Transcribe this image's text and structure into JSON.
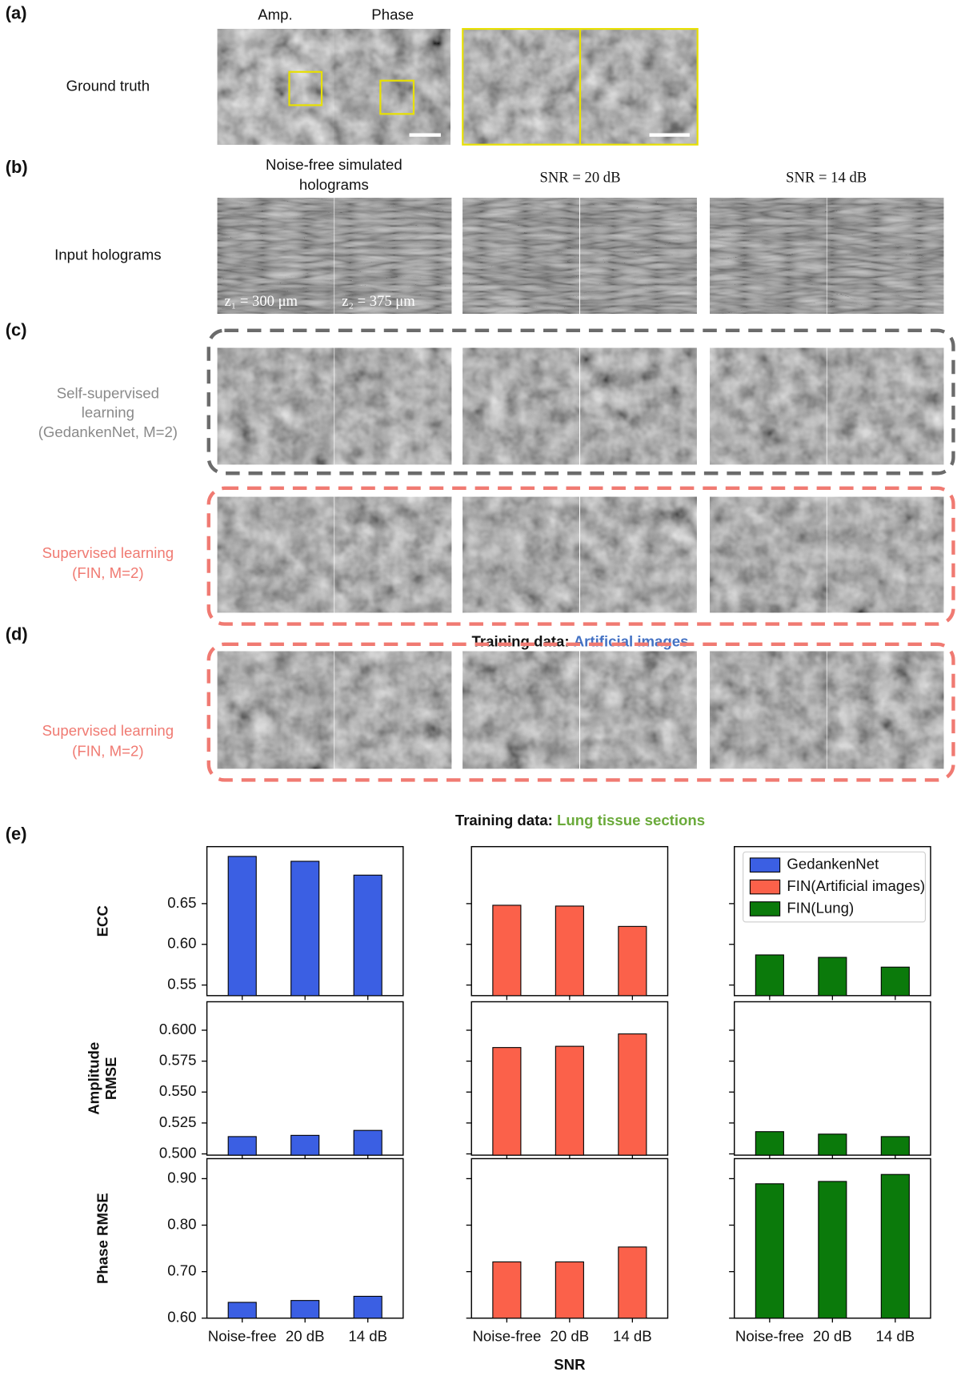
{
  "panel_a": {
    "label": "(a)",
    "row_label": "Ground truth",
    "columns": [
      "Amp.",
      "Phase"
    ]
  },
  "panel_b": {
    "label": "(b)",
    "row_label": "Input holograms",
    "columns": [
      [
        "Noise-free simulated",
        "holograms"
      ],
      [
        "SNR = 20 dB"
      ],
      [
        "SNR = 14 dB"
      ]
    ],
    "distances": [
      "z₁ = 300 μm",
      "z₂ = 375 μm"
    ]
  },
  "panel_c": {
    "label": "(c)",
    "rows": [
      [
        "Self-supervised",
        "learning",
        "(GedankenNet, M=2)"
      ],
      [
        "Supervised learning",
        "(FIN, M=2)"
      ]
    ],
    "training_data": {
      "prefix": "Training data:",
      "name": "Artificial images"
    }
  },
  "panel_d": {
    "label": "(d)",
    "row_label": [
      "Supervised learning",
      "(FIN, M=2)"
    ],
    "training_data": {
      "prefix": "Training data:",
      "name": "Lung tissue sections"
    }
  },
  "panel_e": {
    "label": "(e)"
  },
  "chart_data": [
    {
      "type": "bar",
      "ylabel": [
        "ECC"
      ],
      "ylim": [
        0.537,
        0.72
      ],
      "yticks": [
        0.55,
        {
          "value": 0.6,
          "label": "0.60"
        },
        0.65
      ],
      "series": [
        {
          "name": "GedankenNet",
          "color": "#3b5fe3",
          "values": [
            0.708,
            0.702,
            0.685
          ]
        }
      ]
    },
    {
      "type": "bar",
      "ylim": [
        0.537,
        0.72
      ],
      "series": [
        {
          "name": "FIN(Artificial images)",
          "color": "#fb614a",
          "values": [
            0.648,
            0.647,
            0.622
          ]
        }
      ]
    },
    {
      "type": "bar",
      "ylim": [
        0.537,
        0.72
      ],
      "legend": "upper right",
      "series": [
        {
          "name": "FIN(Lung)",
          "color": "#0b7a0b",
          "values": [
            0.587,
            0.584,
            0.572
          ]
        }
      ]
    },
    {
      "type": "bar",
      "ylabel": [
        "Amplitude",
        "RMSE"
      ],
      "ylim": [
        0.499,
        0.623
      ],
      "yticks": [
        {
          "value": 0.5,
          "label": "0.500"
        },
        0.525,
        {
          "value": 0.55,
          "label": "0.550"
        },
        0.575,
        {
          "value": 0.6,
          "label": "0.600"
        }
      ],
      "series": [
        {
          "color": "#3b5fe3",
          "values": [
            0.514,
            0.515,
            0.519
          ]
        }
      ]
    },
    {
      "type": "bar",
      "ylim": [
        0.499,
        0.623
      ],
      "series": [
        {
          "color": "#fb614a",
          "values": [
            0.586,
            0.587,
            0.597
          ]
        }
      ]
    },
    {
      "type": "bar",
      "ylim": [
        0.499,
        0.623
      ],
      "series": [
        {
          "color": "#0b7a0b",
          "values": [
            0.518,
            0.516,
            0.514
          ]
        }
      ]
    },
    {
      "type": "bar",
      "ylabel": [
        "Phase RMSE"
      ],
      "ylim": [
        0.6,
        0.943
      ],
      "yticks": [
        {
          "value": 0.6,
          "label": "0.60"
        },
        {
          "value": 0.7,
          "label": "0.70"
        },
        {
          "value": 0.8,
          "label": "0.80"
        },
        {
          "value": 0.9,
          "label": "0.90"
        }
      ],
      "categories": [
        "Noise-free",
        "20 dB",
        "14 dB"
      ],
      "series": [
        {
          "color": "#3b5fe3",
          "values": [
            0.634,
            0.638,
            0.647
          ]
        }
      ]
    },
    {
      "type": "bar",
      "ylim": [
        0.6,
        0.943
      ],
      "xlabel": "SNR",
      "categories": [
        "Noise-free",
        "20 dB",
        "14 dB"
      ],
      "series": [
        {
          "color": "#fb614a",
          "values": [
            0.721,
            0.721,
            0.753
          ]
        }
      ]
    },
    {
      "type": "bar",
      "ylim": [
        0.6,
        0.943
      ],
      "categories": [
        "Noise-free",
        "20 dB",
        "14 dB"
      ],
      "series": [
        {
          "color": "#0b7a0b",
          "values": [
            0.889,
            0.894,
            0.909
          ]
        }
      ]
    }
  ]
}
